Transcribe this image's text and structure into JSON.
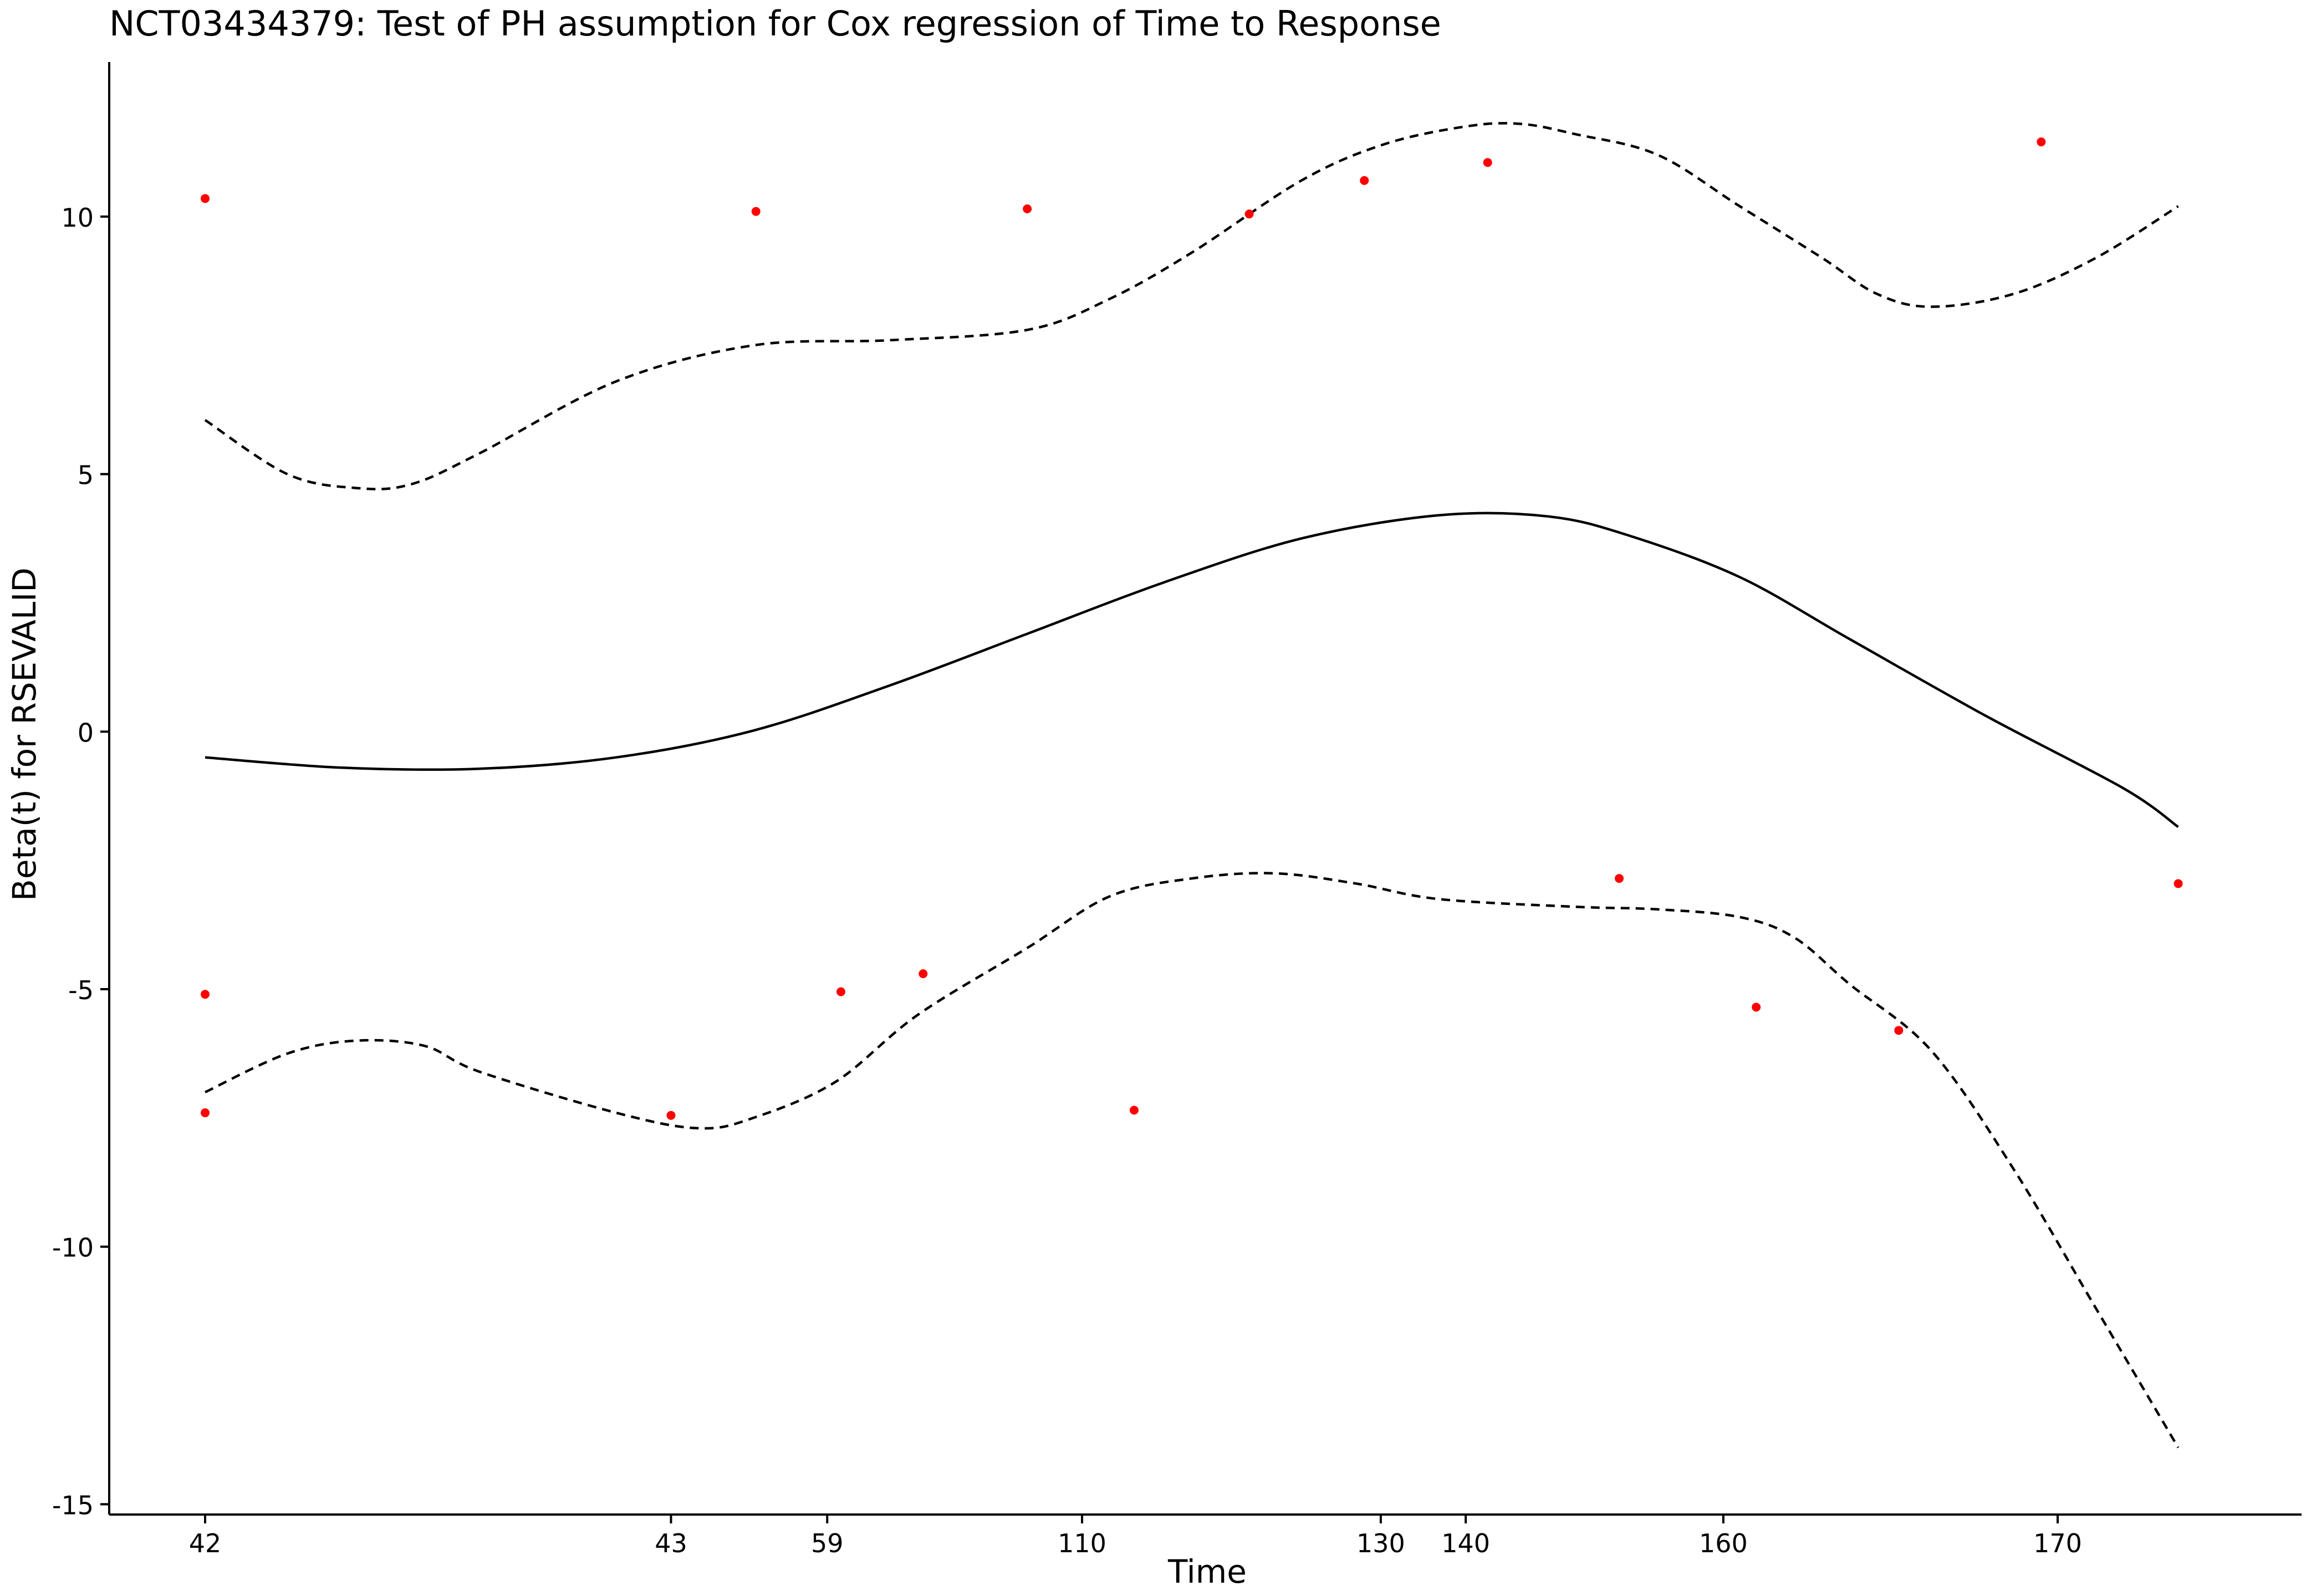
{
  "chart_data": {
    "type": "line",
    "title": "NCT03434379: Test of PH assumption for Cox regression of Time to Response",
    "xlabel": "Time",
    "ylabel": "Beta(t) for RSEVALID",
    "x_axis_note": "x positions in transformed (rank) time; tick labels show actual time values",
    "xlim": [
      -0.35,
      7.65
    ],
    "ylim": [
      -15.2,
      13.0
    ],
    "x_ticks": [
      {
        "pos": 0.0,
        "label": "42"
      },
      {
        "pos": 1.7,
        "label": "43"
      },
      {
        "pos": 2.27,
        "label": "59"
      },
      {
        "pos": 3.2,
        "label": "110"
      },
      {
        "pos": 4.29,
        "label": "130"
      },
      {
        "pos": 4.6,
        "label": "140"
      },
      {
        "pos": 5.54,
        "label": "160"
      },
      {
        "pos": 6.76,
        "label": "170"
      }
    ],
    "y_ticks": [
      {
        "value": 10,
        "label": "10"
      },
      {
        "value": 5,
        "label": "5"
      },
      {
        "value": 0,
        "label": "0"
      },
      {
        "value": -5,
        "label": "-5"
      },
      {
        "value": -10,
        "label": "-10"
      },
      {
        "value": -15,
        "label": "-15"
      }
    ],
    "grid": false,
    "legend": "none",
    "series": [
      {
        "role": "beta-fit",
        "style": "solid",
        "color": "#000000",
        "x": [
          0.0,
          0.5,
          1.0,
          1.5,
          2.0,
          2.5,
          3.0,
          3.5,
          4.0,
          4.5,
          4.9,
          5.2,
          5.6,
          6.0,
          6.5,
          7.0,
          7.2
        ],
        "y": [
          -0.5,
          -0.7,
          -0.72,
          -0.5,
          0.02,
          0.9,
          1.9,
          2.9,
          3.75,
          4.2,
          4.18,
          3.8,
          3.0,
          1.8,
          0.3,
          -1.1,
          -1.85
        ]
      },
      {
        "role": "upper-confidence",
        "style": "dashed",
        "color": "#000000",
        "x": [
          0.0,
          0.3,
          0.55,
          0.75,
          1.0,
          1.5,
          2.0,
          2.5,
          3.0,
          3.3,
          3.6,
          4.0,
          4.3,
          4.6,
          4.8,
          5.0,
          5.3,
          5.6,
          5.9,
          6.1,
          6.3,
          6.6,
          6.9,
          7.2
        ],
        "y": [
          6.05,
          5.0,
          4.73,
          4.8,
          5.4,
          6.8,
          7.5,
          7.6,
          7.8,
          8.4,
          9.3,
          10.7,
          11.4,
          11.75,
          11.8,
          11.6,
          11.2,
          10.2,
          9.2,
          8.5,
          8.25,
          8.5,
          9.2,
          10.2
        ]
      },
      {
        "role": "lower-confidence",
        "style": "dashed",
        "color": "#000000",
        "x": [
          0.0,
          0.3,
          0.55,
          0.8,
          1.0,
          1.5,
          1.8,
          2.0,
          2.3,
          2.6,
          3.0,
          3.3,
          3.6,
          3.9,
          4.2,
          4.5,
          5.0,
          5.3,
          5.6,
          5.8,
          6.0,
          6.3,
          6.6,
          6.9,
          7.2
        ],
        "y": [
          -7.0,
          -6.25,
          -6.0,
          -6.1,
          -6.6,
          -7.4,
          -7.7,
          -7.5,
          -6.8,
          -5.5,
          -4.2,
          -3.2,
          -2.85,
          -2.75,
          -2.95,
          -3.25,
          -3.4,
          -3.45,
          -3.6,
          -4.0,
          -4.9,
          -6.2,
          -8.5,
          -11.2,
          -13.9
        ]
      }
    ],
    "points": {
      "role": "scaled-schoenfeld-residuals",
      "color": "#ff0000",
      "x": [
        0.0,
        0.0,
        0.0,
        1.7,
        2.01,
        2.32,
        2.62,
        3.0,
        3.39,
        3.81,
        4.23,
        4.68,
        5.16,
        5.66,
        6.18,
        6.7,
        7.2
      ],
      "y": [
        10.35,
        -5.1,
        -7.4,
        -7.45,
        10.1,
        -5.05,
        -4.7,
        10.15,
        -7.35,
        10.05,
        10.7,
        11.05,
        -2.85,
        -5.35,
        -5.8,
        11.45,
        -2.95
      ]
    }
  }
}
